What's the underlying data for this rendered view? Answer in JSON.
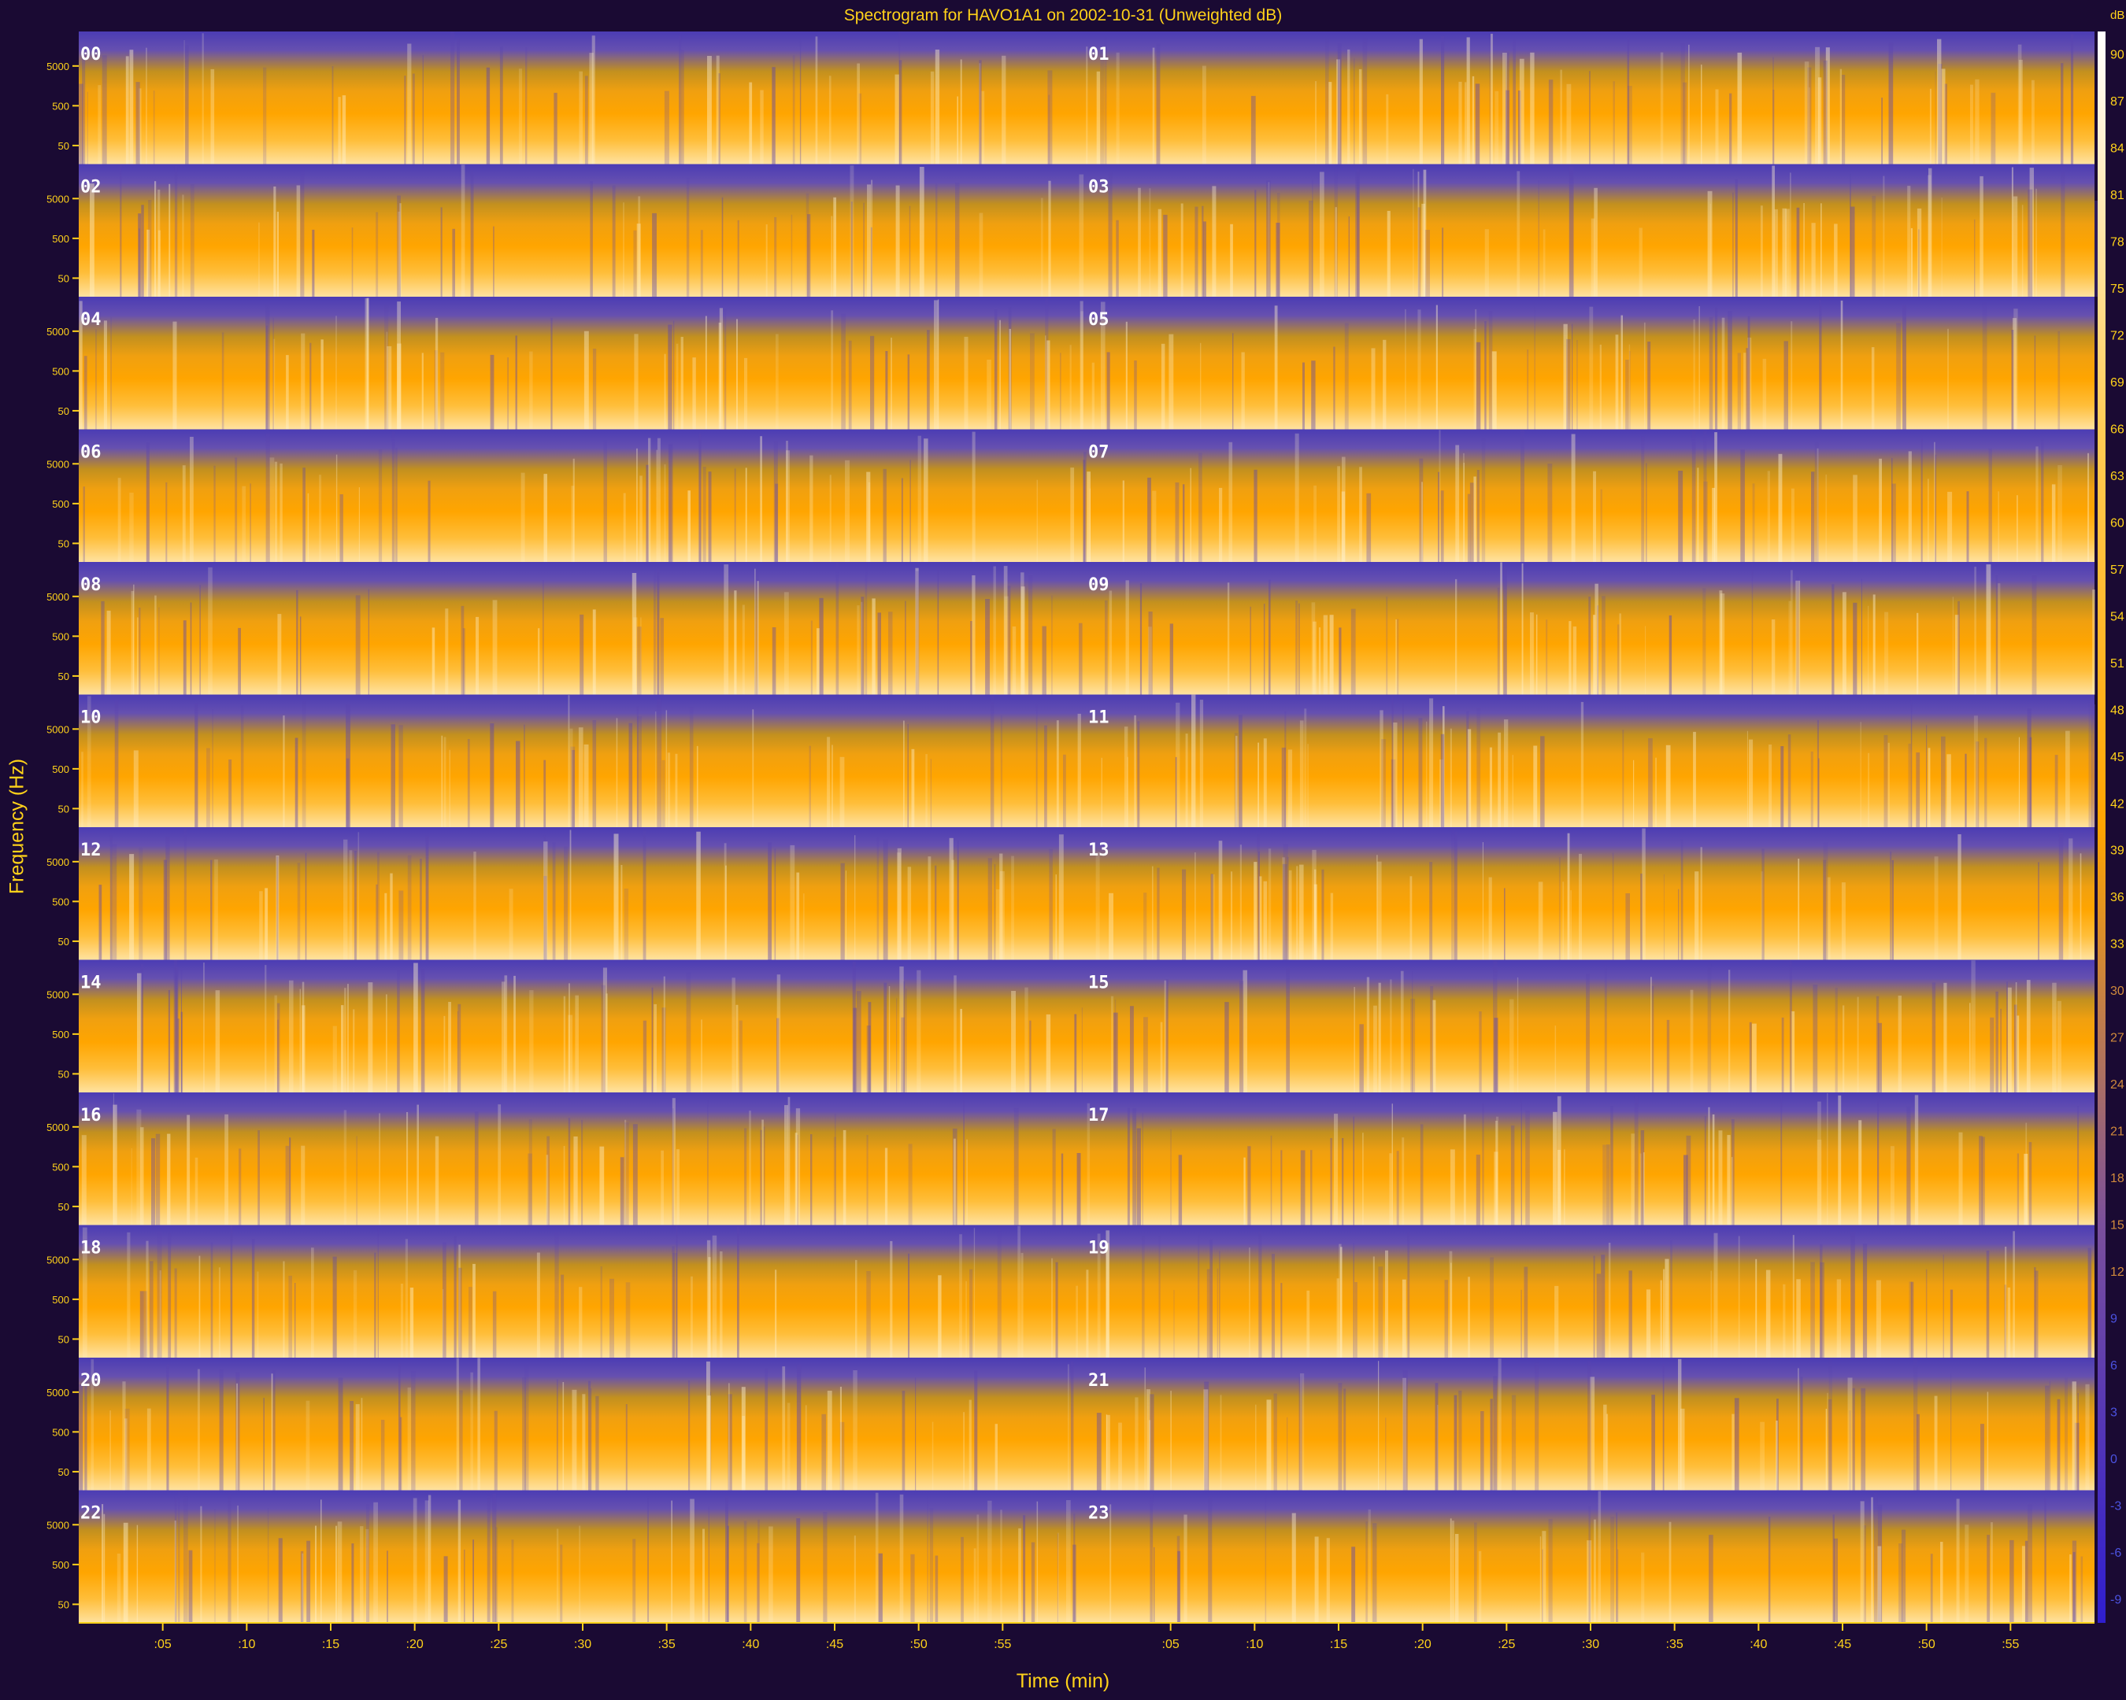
{
  "chart_data": {
    "type": "heatmap",
    "title": "Spectrogram for HAVO1A1 on 2002-10-31 (Unweighted dB)",
    "xlabel": "Time (min)",
    "ylabel": "Frequency (Hz)",
    "rows": [
      "00",
      "01",
      "02",
      "03",
      "04",
      "05",
      "06",
      "07",
      "08",
      "09",
      "10",
      "11",
      "12",
      "13",
      "14",
      "15",
      "16",
      "17",
      "18",
      "19",
      "20",
      "21",
      "22",
      "23"
    ],
    "x_ticks": [
      ":05",
      ":10",
      ":15",
      ":20",
      ":25",
      ":30",
      ":35",
      ":40",
      ":45",
      ":50",
      ":55"
    ],
    "y_ticks": [
      "5000",
      "500",
      "50"
    ],
    "colorbar": {
      "unit": "dB",
      "ticks": [
        "90",
        "87",
        "84",
        "81",
        "78",
        "75",
        "72",
        "69",
        "66",
        "63",
        "60",
        "57",
        "54",
        "51",
        "48",
        "45",
        "42",
        "39",
        "36",
        "33",
        "30",
        "27",
        "24",
        "21",
        "18",
        "15",
        "12",
        "9",
        "6",
        "3",
        "0",
        "-3",
        "-6",
        "-9"
      ],
      "colors": [
        "#ffffff",
        "#ffa500",
        "#4b3cb4"
      ]
    },
    "grid": false,
    "legend": "none"
  }
}
